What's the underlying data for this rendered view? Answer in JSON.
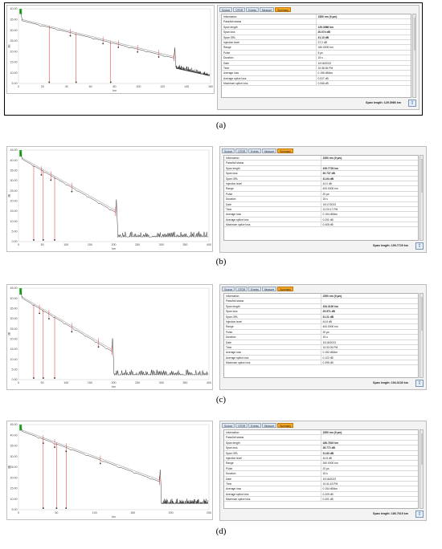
{
  "tabs": [
    "Source",
    "OTDR",
    "Events",
    "Measure",
    "Summary"
  ],
  "active_tab": "Summary",
  "x_axis_label": "km",
  "y_axis_label": "dB",
  "panels": [
    {
      "caption": "(a)",
      "x_ticks": [
        "0",
        "20",
        "40",
        "60",
        "80",
        "100",
        "120",
        "140",
        "160"
      ],
      "y_ticks": [
        "5.00",
        "10.00",
        "15.00",
        "20.00",
        "25.00",
        "30.00",
        "35.00",
        "40.00"
      ],
      "rows": [
        {
          "k": "Information",
          "v": "1550 nm (9 µm)",
          "b": true
        },
        {
          "k": "Pass/fail status",
          "v": "",
          "b": false
        },
        {
          "k": "Span length",
          "v": "129.3986 km",
          "b": true
        },
        {
          "k": "Span loss",
          "v": "20.074 dB",
          "b": true
        },
        {
          "k": "Span ORL",
          "v": "31.13 dB",
          "b": true
        },
        {
          "k": "Injection level",
          "v": "37.2 dB",
          "b": false
        },
        {
          "k": "Range",
          "v": "160.0000 km",
          "b": false
        },
        {
          "k": "Pulse",
          "v": "5 µs",
          "b": false
        },
        {
          "k": "Duration",
          "v": "15 s",
          "b": false
        },
        {
          "k": "Date",
          "v": "10/16/2023",
          "b": false
        },
        {
          "k": "Time",
          "v": "10:38:36 PM",
          "b": false
        },
        {
          "k": "Average loss",
          "v": "0.155 dB/km",
          "b": false
        },
        {
          "k": "Average splice loss",
          "v": "0.027 dB",
          "b": false
        },
        {
          "k": "Maximum splice loss",
          "v": "0.066 dB",
          "b": false
        }
      ],
      "span_length_text": "Span length: 129.3986 km"
    },
    {
      "caption": "(b)",
      "x_ticks": [
        "0",
        "50",
        "100",
        "150",
        "200",
        "250",
        "300",
        "350",
        "400"
      ],
      "y_ticks": [
        "0.00",
        "5.00",
        "10.00",
        "15.00",
        "20.00",
        "25.00",
        "30.00",
        "35.00",
        "40.00",
        "45.00"
      ],
      "rows": [
        {
          "k": "Information",
          "v": "1550 nm (9 µm)",
          "b": true
        },
        {
          "k": "Pass/fail status",
          "v": "",
          "b": false
        },
        {
          "k": "Span length",
          "v": "199.7729 km",
          "b": true
        },
        {
          "k": "Span loss",
          "v": "30.737 dB",
          "b": true
        },
        {
          "k": "Span ORL",
          "v": "31.64 dB",
          "b": true
        },
        {
          "k": "Injection level",
          "v": "44.0 dB",
          "b": false
        },
        {
          "k": "Range",
          "v": "400.0000 km",
          "b": false
        },
        {
          "k": "Pulse",
          "v": "20 µs",
          "b": false
        },
        {
          "k": "Duration",
          "v": "15 s",
          "b": false
        },
        {
          "k": "Date",
          "v": "10/17/2023",
          "b": false
        },
        {
          "k": "Time",
          "v": "12:20:17 PM",
          "b": false
        },
        {
          "k": "Average loss",
          "v": "0.154 dB/km",
          "b": false
        },
        {
          "k": "Average splice loss",
          "v": "0.201 dB",
          "b": false
        },
        {
          "k": "Maximum splice loss",
          "v": "0.408 dB",
          "b": false
        }
      ],
      "span_length_text": "Span length: 199.7729 km"
    },
    {
      "caption": "(c)",
      "x_ticks": [
        "0",
        "50",
        "100",
        "150",
        "200",
        "250",
        "300",
        "350",
        "400"
      ],
      "y_ticks": [
        "0.00",
        "5.00",
        "10.00",
        "15.00",
        "20.00",
        "25.00",
        "30.00",
        "35.00",
        "40.00",
        "45.00"
      ],
      "rows": [
        {
          "k": "Information",
          "v": "1550 nm (9 µm)",
          "b": true
        },
        {
          "k": "Pass/fail status",
          "v": "",
          "b": false
        },
        {
          "k": "Span length",
          "v": "194.3130 km",
          "b": true
        },
        {
          "k": "Span loss",
          "v": "29.571 dB",
          "b": true
        },
        {
          "k": "Span ORL",
          "v": "31.21 dB",
          "b": true
        },
        {
          "k": "Injection level",
          "v": "44.8 dB",
          "b": false
        },
        {
          "k": "Range",
          "v": "400.0000 km",
          "b": false
        },
        {
          "k": "Pulse",
          "v": "20 µs",
          "b": false
        },
        {
          "k": "Duration",
          "v": "15 s",
          "b": false
        },
        {
          "k": "Date",
          "v": "10/16/2023",
          "b": false
        },
        {
          "k": "Time",
          "v": "10:32:05 PM",
          "b": false
        },
        {
          "k": "Average loss",
          "v": "0.152 dB/km",
          "b": false
        },
        {
          "k": "Average splice loss",
          "v": "0.122 dB",
          "b": false
        },
        {
          "k": "Maximum splice loss",
          "v": "0.395 dB",
          "b": false
        }
      ],
      "span_length_text": "Span length: 194.3130 km"
    },
    {
      "caption": "(d)",
      "x_ticks": [
        "0",
        "50",
        "100",
        "150",
        "200",
        "250"
      ],
      "y_ticks": [
        "5.00",
        "10.00",
        "15.00",
        "20.00",
        "25.00",
        "30.00",
        "35.00",
        "40.00",
        "45.00"
      ],
      "rows": [
        {
          "k": "Information",
          "v": "1550 nm (9 µm)",
          "b": true
        },
        {
          "k": "Pass/fail status",
          "v": "",
          "b": false
        },
        {
          "k": "Span length",
          "v": "186.7619 km",
          "b": true
        },
        {
          "k": "Span loss",
          "v": "28.772 dB",
          "b": true
        },
        {
          "k": "Span ORL",
          "v": "31.83 dB",
          "b": true
        },
        {
          "k": "Injection level",
          "v": "44.8 dB",
          "b": false
        },
        {
          "k": "Range",
          "v": "260.0000 km",
          "b": false
        },
        {
          "k": "Pulse",
          "v": "20 µs",
          "b": false
        },
        {
          "k": "Duration",
          "v": "15 s",
          "b": false
        },
        {
          "k": "Date",
          "v": "10/16/2023",
          "b": false
        },
        {
          "k": "Time",
          "v": "10:41:43 PM",
          "b": false
        },
        {
          "k": "Average loss",
          "v": "0.154 dB/km",
          "b": false
        },
        {
          "k": "Average splice loss",
          "v": "0.209 dB",
          "b": false
        },
        {
          "k": "Maximum splice loss",
          "v": "0.401 dB",
          "b": false
        }
      ],
      "span_length_text": "Span length: 186.7619 km"
    }
  ],
  "colors": {
    "trace": "#222222",
    "fit_line": "#8a8a8a",
    "event_marker": "#e03030",
    "launch_marker": "#22aa22",
    "active_tab": "#f5a623"
  }
}
